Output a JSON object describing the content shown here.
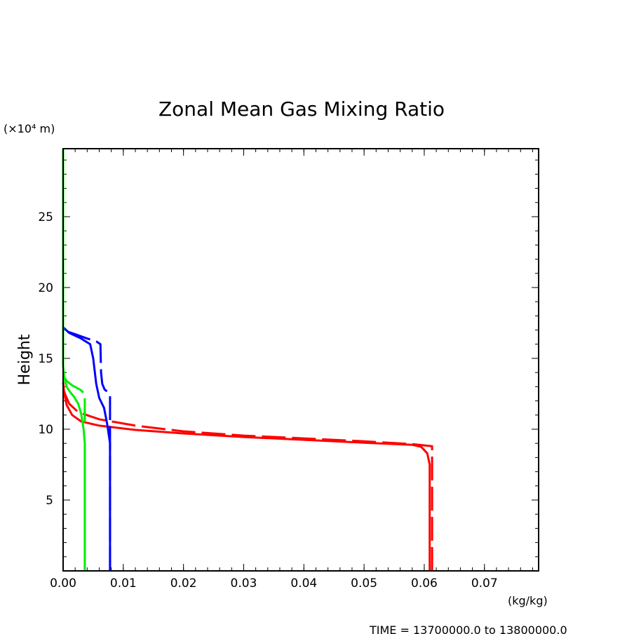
{
  "chart_data": {
    "type": "line",
    "title": "Zonal Mean Gas Mixing Ratio",
    "xlabel": "",
    "x_unit": "(kg/kg)",
    "ylabel": "Height",
    "y_unit": "(×10⁴ m)",
    "footer": "TIME = 13700000.0 to 13800000.0",
    "xlim": [
      0.0,
      0.079
    ],
    "ylim": [
      0.0,
      29.8
    ],
    "x_ticks": [
      "0.00",
      "0.01",
      "0.02",
      "0.03",
      "0.04",
      "0.05",
      "0.06",
      "0.07"
    ],
    "x_tick_values": [
      0.0,
      0.01,
      0.02,
      0.03,
      0.04,
      0.05,
      0.06,
      0.07
    ],
    "y_ticks": [
      "5",
      "10",
      "15",
      "20",
      "25"
    ],
    "y_tick_values": [
      5,
      10,
      15,
      20,
      25
    ],
    "grid": false,
    "series": [
      {
        "color": "#ff0000",
        "dash": "solid",
        "points": [
          [
            0.0609,
            0
          ],
          [
            0.0609,
            7.5
          ],
          [
            0.0605,
            8.3
          ],
          [
            0.0595,
            8.75
          ],
          [
            0.058,
            8.9
          ],
          [
            0.05,
            9.05
          ],
          [
            0.04,
            9.25
          ],
          [
            0.03,
            9.45
          ],
          [
            0.02,
            9.7
          ],
          [
            0.012,
            9.95
          ],
          [
            0.006,
            10.25
          ],
          [
            0.003,
            10.55
          ],
          [
            0.0015,
            11.0
          ],
          [
            0.0006,
            11.7
          ],
          [
            0.0002,
            12.5
          ],
          [
            0.0,
            13.3
          ]
        ]
      },
      {
        "color": "#ff0000",
        "dash": "dashed",
        "points": [
          [
            0.0613,
            0
          ],
          [
            0.0613,
            8.8
          ],
          [
            0.058,
            8.95
          ],
          [
            0.05,
            9.15
          ],
          [
            0.04,
            9.35
          ],
          [
            0.03,
            9.55
          ],
          [
            0.02,
            9.85
          ],
          [
            0.012,
            10.25
          ],
          [
            0.006,
            10.7
          ],
          [
            0.0025,
            11.2
          ],
          [
            0.001,
            11.8
          ],
          [
            0.0003,
            12.5
          ],
          [
            0.0,
            13.0
          ]
        ]
      },
      {
        "color": "#0000ff",
        "dash": "solid",
        "points": [
          [
            0.0078,
            0
          ],
          [
            0.0078,
            9.0
          ],
          [
            0.0073,
            10.4
          ],
          [
            0.0068,
            11.5
          ],
          [
            0.006,
            12.2
          ],
          [
            0.0055,
            13.2
          ],
          [
            0.005,
            15.0
          ],
          [
            0.0045,
            16.0
          ],
          [
            0.003,
            16.4
          ],
          [
            0.001,
            16.8
          ],
          [
            0.0,
            17.2
          ]
        ]
      },
      {
        "color": "#0000ff",
        "dash": "dashed",
        "points": [
          [
            0.0078,
            0
          ],
          [
            0.0078,
            12.5
          ],
          [
            0.0069,
            12.8
          ],
          [
            0.0065,
            13.2
          ],
          [
            0.0063,
            14.0
          ],
          [
            0.0062,
            16.0
          ],
          [
            0.0055,
            16.2
          ],
          [
            0.004,
            16.4
          ],
          [
            0.002,
            16.7
          ],
          [
            0.0,
            17.0
          ]
        ]
      },
      {
        "color": "#00ee00",
        "dash": "solid",
        "points": [
          [
            0.0036,
            0
          ],
          [
            0.0036,
            9.0
          ],
          [
            0.0034,
            10.0
          ],
          [
            0.003,
            11.1
          ],
          [
            0.0025,
            11.8
          ],
          [
            0.0018,
            12.3
          ],
          [
            0.0012,
            12.6
          ],
          [
            0.0006,
            13.0
          ],
          [
            0.0002,
            13.6
          ],
          [
            0.0,
            14.5
          ],
          [
            0.0,
            29.8
          ]
        ]
      },
      {
        "color": "#00ee00",
        "dash": "dashed",
        "points": [
          [
            0.0036,
            10.5
          ],
          [
            0.0036,
            12.5
          ],
          [
            0.0028,
            12.8
          ],
          [
            0.0015,
            13.1
          ],
          [
            0.0006,
            13.4
          ],
          [
            0.0,
            13.8
          ]
        ]
      }
    ]
  }
}
